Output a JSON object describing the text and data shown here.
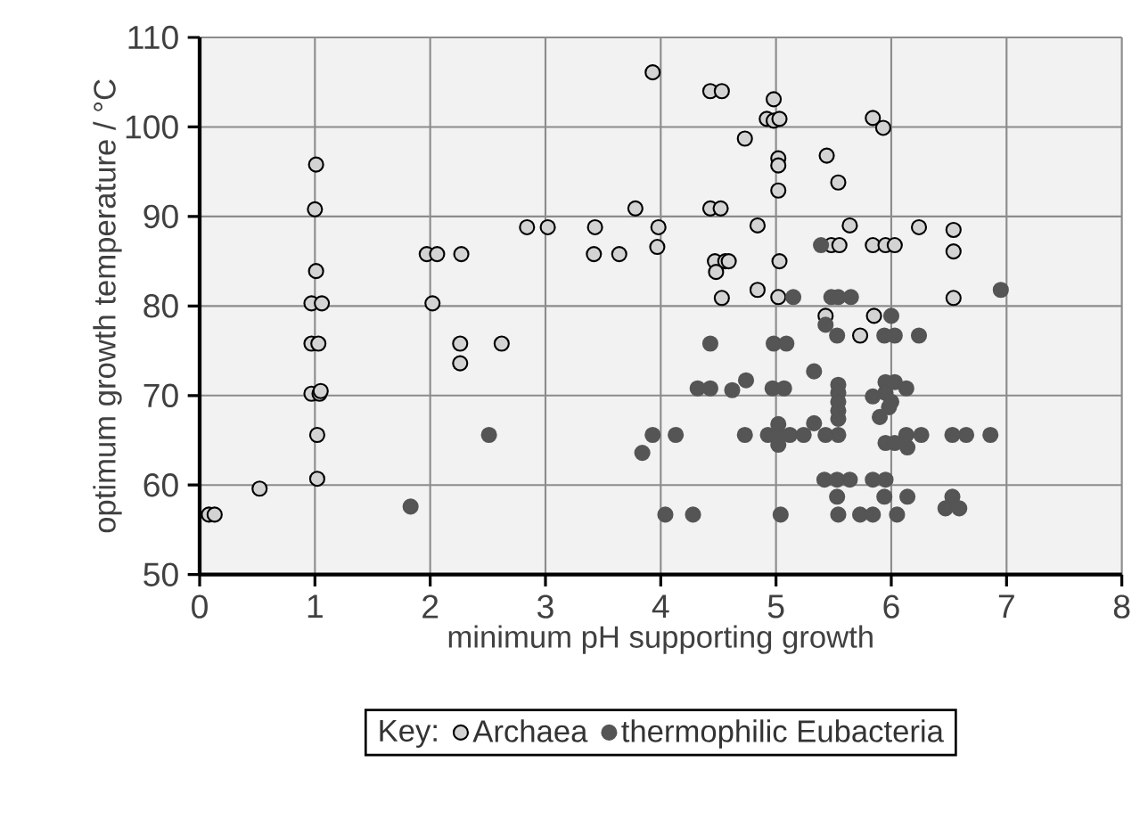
{
  "chart_data": {
    "type": "scatter",
    "xlabel": "minimum pH supporting growth",
    "ylabel": "optimum growth temperature / °C",
    "legend_title": "Key:",
    "legend": "bottom",
    "grid": true,
    "xlim": [
      0,
      8
    ],
    "xticks": [
      0,
      1,
      2,
      3,
      4,
      5,
      6,
      7,
      8
    ],
    "ylim": [
      50,
      110
    ],
    "yticks": [
      50,
      60,
      70,
      80,
      90,
      100,
      110
    ],
    "series": [
      {
        "name": "Archaea",
        "color": "#d3d3d3",
        "x": [
          3.93,
          1.01,
          1.0,
          1.97,
          2.06,
          2.27,
          2.84,
          3.02,
          3.43,
          3.78,
          3.98,
          3.42,
          3.64,
          3.97,
          1.01,
          0.97,
          1.06,
          2.02,
          0.97,
          1.03,
          2.26,
          2.62,
          2.26,
          0.97,
          1.04,
          1.05,
          1.02,
          1.02,
          0.52,
          0.08,
          0.13,
          4.43,
          4.53,
          4.98,
          4.92,
          4.98,
          5.03,
          5.84,
          5.93,
          4.73,
          5.02,
          5.02,
          5.44,
          5.54,
          5.02,
          4.43,
          4.52,
          4.84,
          5.64,
          6.24,
          6.54,
          6.54,
          5.48,
          5.55,
          5.84,
          5.95,
          6.03,
          4.47,
          4.56,
          4.59,
          4.48,
          5.03,
          4.53,
          4.84,
          5.02,
          6.54,
          5.43,
          5.85,
          5.73
        ],
        "values": [
          106.1,
          95.8,
          90.8,
          85.8,
          85.8,
          85.8,
          88.8,
          88.8,
          88.8,
          90.9,
          88.8,
          85.8,
          85.8,
          86.6,
          83.9,
          80.3,
          80.3,
          80.3,
          75.8,
          75.8,
          75.8,
          75.8,
          73.6,
          70.2,
          70.2,
          70.5,
          65.6,
          60.7,
          59.6,
          56.7,
          56.7,
          104,
          104,
          103.1,
          100.9,
          100.7,
          100.9,
          101,
          99.9,
          98.7,
          96.5,
          95.7,
          96.8,
          93.8,
          92.9,
          90.9,
          90.9,
          89,
          89,
          88.8,
          88.5,
          86.1,
          86.8,
          86.8,
          86.8,
          86.8,
          86.8,
          85,
          85,
          85,
          83.8,
          85,
          80.9,
          81.8,
          81,
          80.9,
          78.9,
          78.9,
          76.7
        ]
      },
      {
        "name": "thermophilic Eubacteria",
        "color": "#555555",
        "x": [
          2.51,
          1.83,
          3.93,
          3.84,
          4.04,
          4.13,
          5.39,
          5.15,
          5.48,
          5.54,
          5.65,
          6.95,
          6.0,
          5.43,
          5.53,
          5.94,
          6.03,
          6.24,
          4.43,
          4.98,
          5.09,
          5.33,
          4.74,
          4.32,
          4.43,
          4.62,
          4.97,
          5.07,
          5.54,
          5.54,
          5.54,
          5.54,
          5.54,
          5.95,
          6.03,
          6.13,
          5.84,
          5.95,
          6.0,
          5.98,
          5.9,
          4.73,
          4.93,
          5.02,
          5.12,
          5.24,
          5.43,
          5.54,
          6.13,
          6.26,
          6.53,
          6.65,
          6.86,
          5.02,
          5.02,
          5.33,
          6.14,
          5.95,
          6.03,
          5.42,
          5.53,
          5.64,
          5.84,
          5.95,
          5.53,
          5.94,
          6.14,
          6.53,
          6.47,
          6.59,
          4.28,
          5.04,
          5.54,
          5.73,
          5.84,
          6.05
        ],
        "values": [
          65.6,
          57.6,
          65.6,
          63.6,
          56.7,
          65.6,
          86.8,
          81,
          81,
          81,
          81,
          81.8,
          78.9,
          77.9,
          76.7,
          76.7,
          76.7,
          76.7,
          75.8,
          75.8,
          75.8,
          72.7,
          71.7,
          70.8,
          70.8,
          70.6,
          70.8,
          70.8,
          71.2,
          70.3,
          69.3,
          68.3,
          67.4,
          71.5,
          71.5,
          70.8,
          69.9,
          70.3,
          69.3,
          68.7,
          67.6,
          65.6,
          65.6,
          65.6,
          65.6,
          65.6,
          65.6,
          65.6,
          65.6,
          65.6,
          65.6,
          65.6,
          65.6,
          66.8,
          64.5,
          66.9,
          64.2,
          64.7,
          64.7,
          60.6,
          60.6,
          60.6,
          60.6,
          60.6,
          58.7,
          58.7,
          58.7,
          58.7,
          57.4,
          57.4,
          56.7,
          56.7,
          56.7,
          56.7,
          56.7,
          56.7
        ]
      }
    ]
  }
}
